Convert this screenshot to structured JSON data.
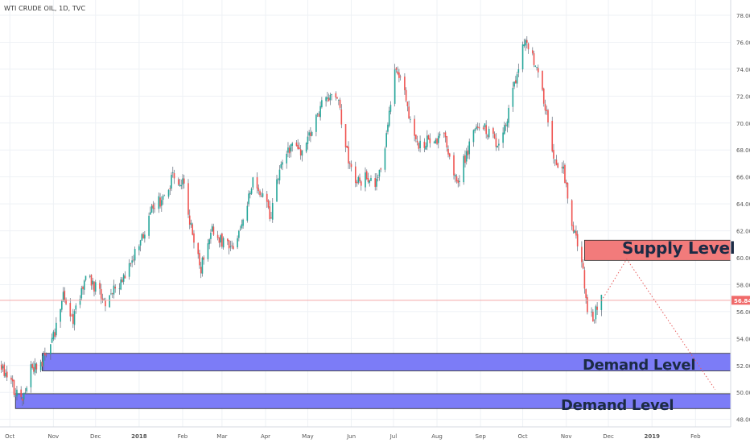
{
  "symbol_title": "WTI CRUDE OIL, 1D, TVC",
  "colors": {
    "up": "#26a69a",
    "down": "#ef5350",
    "wick": "#5f6b7a",
    "grid": "#eef1f5",
    "supply_fill": "#f27b7b",
    "demand_fill": "#7c7cf7",
    "zone_border": "#2a2a2a",
    "price_line": "#f5a9a9",
    "price_badge": "#f06a6a",
    "projection": "#e85c5c",
    "axis_text": "#555555"
  },
  "chart_data": {
    "type": "candlestick",
    "title": "WTI CRUDE OIL, 1D, TVC",
    "ylim": [
      47.8,
      78.6
    ],
    "y_ticks": [
      "48.00",
      "50.00",
      "52.00",
      "54.00",
      "56.00",
      "58.00",
      "60.00",
      "62.00",
      "64.00",
      "66.00",
      "68.00",
      "70.00",
      "72.00",
      "74.00",
      "76.00",
      "78.00"
    ],
    "x_ticks": [
      "Oct",
      "Nov",
      "Dec",
      "2018",
      "Feb",
      "Mar",
      "Apr",
      "May",
      "Jun",
      "Jul",
      "Aug",
      "Sep",
      "Oct",
      "Nov",
      "Dec",
      "2019",
      "Feb"
    ],
    "last_price": "56.84",
    "price_path": [
      [
        "2017-09-25",
        52.0
      ],
      [
        "2017-10-03",
        50.4
      ],
      [
        "2017-10-09",
        49.4
      ],
      [
        "2017-10-16",
        51.7
      ],
      [
        "2017-10-24",
        52.2
      ],
      [
        "2017-11-02",
        54.5
      ],
      [
        "2017-11-08",
        57.2
      ],
      [
        "2017-11-15",
        55.4
      ],
      [
        "2017-11-24",
        58.5
      ],
      [
        "2017-12-01",
        57.8
      ],
      [
        "2017-12-08",
        56.8
      ],
      [
        "2017-12-15",
        57.6
      ],
      [
        "2017-12-22",
        58.5
      ],
      [
        "2018-01-04",
        61.8
      ],
      [
        "2018-01-11",
        63.8
      ],
      [
        "2018-01-18",
        64.4
      ],
      [
        "2018-01-26",
        66.2
      ],
      [
        "2018-02-02",
        65.4
      ],
      [
        "2018-02-08",
        61.5
      ],
      [
        "2018-02-14",
        59.2
      ],
      [
        "2018-02-22",
        62.2
      ],
      [
        "2018-03-01",
        61.2
      ],
      [
        "2018-03-08",
        60.6
      ],
      [
        "2018-03-15",
        62.6
      ],
      [
        "2018-03-23",
        65.8
      ],
      [
        "2018-03-30",
        64.6
      ],
      [
        "2018-04-05",
        63.0
      ],
      [
        "2018-04-11",
        66.8
      ],
      [
        "2018-04-19",
        68.4
      ],
      [
        "2018-04-27",
        67.8
      ],
      [
        "2018-05-04",
        69.4
      ],
      [
        "2018-05-10",
        71.2
      ],
      [
        "2018-05-17",
        71.8
      ],
      [
        "2018-05-23",
        71.6
      ],
      [
        "2018-05-30",
        67.2
      ],
      [
        "2018-06-05",
        65.6
      ],
      [
        "2018-06-12",
        66.0
      ],
      [
        "2018-06-18",
        65.0
      ],
      [
        "2018-06-25",
        68.2
      ],
      [
        "2018-07-02",
        73.8
      ],
      [
        "2018-07-06",
        73.4
      ],
      [
        "2018-07-12",
        70.6
      ],
      [
        "2018-07-18",
        68.2
      ],
      [
        "2018-07-24",
        68.6
      ],
      [
        "2018-07-31",
        68.8
      ],
      [
        "2018-08-07",
        69.0
      ],
      [
        "2018-08-15",
        65.4
      ],
      [
        "2018-08-22",
        67.8
      ],
      [
        "2018-08-28",
        69.4
      ],
      [
        "2018-09-05",
        69.6
      ],
      [
        "2018-09-11",
        68.6
      ],
      [
        "2018-09-17",
        69.0
      ],
      [
        "2018-09-24",
        72.2
      ],
      [
        "2018-10-01",
        75.4
      ],
      [
        "2018-10-03",
        76.4
      ],
      [
        "2018-10-09",
        74.6
      ],
      [
        "2018-10-16",
        71.8
      ],
      [
        "2018-10-23",
        67.6
      ],
      [
        "2018-10-30",
        66.4
      ],
      [
        "2018-11-06",
        62.0
      ],
      [
        "2018-11-12",
        59.8
      ],
      [
        "2018-11-16",
        56.2
      ],
      [
        "2018-11-20",
        55.6
      ],
      [
        "2018-11-26",
        57.2
      ]
    ],
    "zones": [
      {
        "kind": "supply",
        "label": "Supply Level",
        "low": 59.8,
        "high": 61.3,
        "start": "2018-11-14"
      },
      {
        "kind": "demand",
        "label": "Demand Level",
        "low": 51.6,
        "high": 52.9,
        "start": "2017-10-24"
      },
      {
        "kind": "demand",
        "label": "Demand Level",
        "low": 48.8,
        "high": 49.9,
        "start": "2017-10-05"
      }
    ],
    "projection": [
      [
        "2018-11-26",
        56.8
      ],
      [
        "2018-12-14",
        59.9
      ],
      [
        "2019-02-15",
        50.2
      ]
    ]
  },
  "labels": {
    "supply": "Supply Level",
    "demand_1": "Demand Level",
    "demand_2": "Demand Level"
  }
}
